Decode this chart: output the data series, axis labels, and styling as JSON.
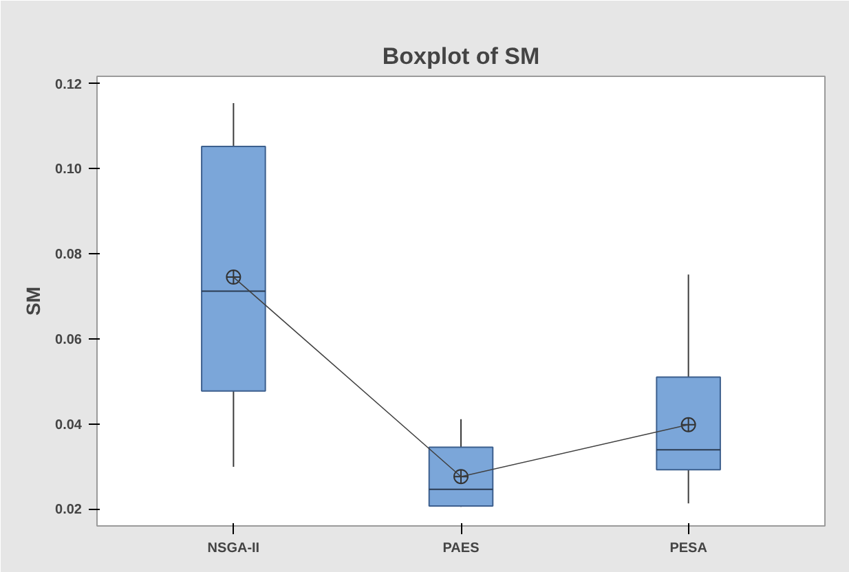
{
  "chart_data": {
    "type": "box",
    "title": "Boxplot of SM",
    "ylabel": "SM",
    "categories": [
      "NSGA-II",
      "PAES",
      "PESA"
    ],
    "boxes": [
      {
        "low": 0.0299,
        "q1": 0.0477,
        "median": 0.0712,
        "q3": 0.1052,
        "high": 0.1154,
        "mean": 0.0745
      },
      {
        "low": 0.0205,
        "q1": 0.0207,
        "median": 0.0246,
        "q3": 0.0345,
        "high": 0.0411,
        "mean": 0.0276
      },
      {
        "low": 0.0213,
        "q1": 0.0292,
        "median": 0.0339,
        "q3": 0.051,
        "high": 0.0751,
        "mean": 0.0398
      }
    ],
    "color": "#7ba6d9",
    "series": [
      {
        "type": "line",
        "color": "#404040",
        "values": [
          0.0745,
          0.0276,
          0.0398
        ]
      }
    ],
    "ylim": [
      0.016,
      0.1217
    ],
    "yticks": [
      {
        "value": 0.02,
        "label": "0.02"
      },
      {
        "value": 0.04,
        "label": "0.04"
      },
      {
        "value": 0.06,
        "label": "0.06"
      },
      {
        "value": 0.08,
        "label": "0.08"
      },
      {
        "value": 0.1,
        "label": "0.10"
      },
      {
        "value": 0.12,
        "label": "0.12"
      }
    ],
    "grid": false
  }
}
